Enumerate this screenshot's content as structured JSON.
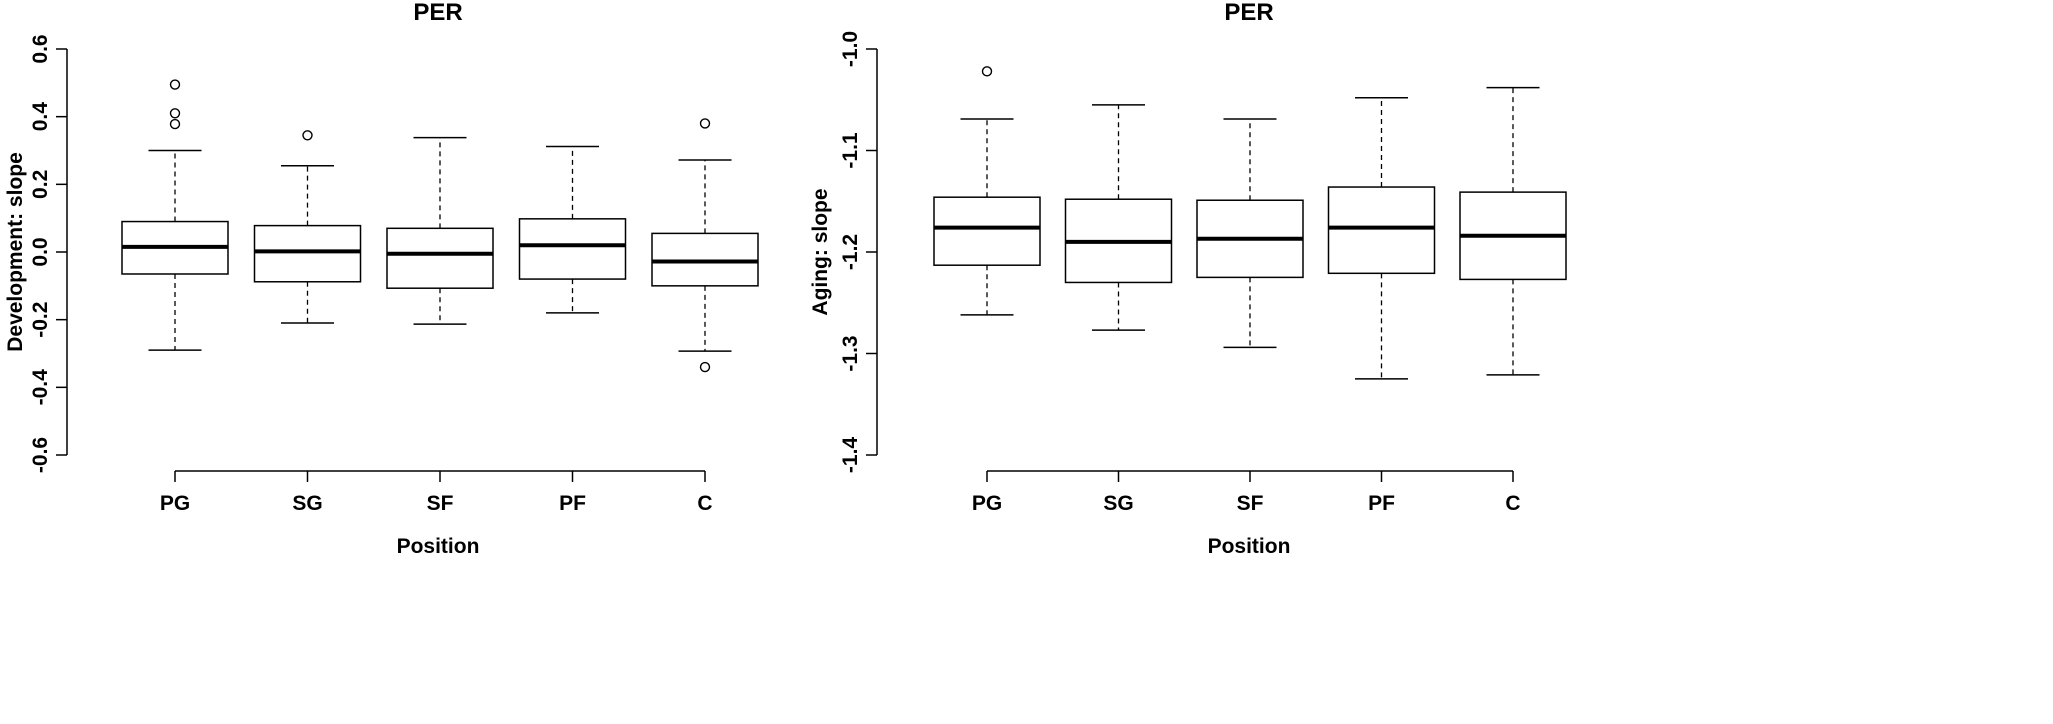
{
  "chart_data": [
    {
      "type": "boxplot",
      "title": "PER",
      "xlabel": "Position",
      "ylabel": "Development: slope",
      "ylim": [
        -0.6,
        0.6
      ],
      "yticks": [
        "-0.6",
        "-0.4",
        "-0.2",
        "0.0",
        "0.2",
        "0.4",
        "0.6"
      ],
      "ytick_values": [
        -0.6,
        -0.4,
        -0.2,
        0.0,
        0.2,
        0.4,
        0.6
      ],
      "categories": [
        "PG",
        "SG",
        "SF",
        "PF",
        "C"
      ],
      "boxes": [
        {
          "category": "PG",
          "whisker_low": -0.29,
          "q1": -0.065,
          "median": 0.015,
          "q3": 0.09,
          "whisker_high": 0.3,
          "outliers": [
            0.495,
            0.41,
            0.378
          ]
        },
        {
          "category": "SG",
          "whisker_low": -0.21,
          "q1": -0.088,
          "median": 0.002,
          "q3": 0.078,
          "whisker_high": 0.255,
          "outliers": [
            0.345
          ]
        },
        {
          "category": "SF",
          "whisker_low": -0.213,
          "q1": -0.107,
          "median": -0.005,
          "q3": 0.07,
          "whisker_high": 0.338,
          "outliers": []
        },
        {
          "category": "PF",
          "whisker_low": -0.18,
          "q1": -0.08,
          "median": 0.02,
          "q3": 0.098,
          "whisker_high": 0.312,
          "outliers": []
        },
        {
          "category": "C",
          "whisker_low": -0.293,
          "q1": -0.1,
          "median": -0.028,
          "q3": 0.055,
          "whisker_high": 0.272,
          "outliers": [
            0.38,
            -0.34
          ]
        }
      ]
    },
    {
      "type": "boxplot",
      "title": "PER",
      "xlabel": "Position",
      "ylabel": "Aging: slope",
      "ylim": [
        -1.4,
        -1.0
      ],
      "yticks": [
        "-1.4",
        "-1.3",
        "-1.2",
        "-1.1",
        "-1.0"
      ],
      "ytick_values": [
        -1.4,
        -1.3,
        -1.2,
        -1.1,
        -1.0
      ],
      "categories": [
        "PG",
        "SG",
        "SF",
        "PF",
        "C"
      ],
      "boxes": [
        {
          "category": "PG",
          "whisker_low": -1.262,
          "q1": -1.213,
          "median": -1.176,
          "q3": -1.146,
          "whisker_high": -1.069,
          "outliers": [
            -1.022
          ]
        },
        {
          "category": "SG",
          "whisker_low": -1.277,
          "q1": -1.23,
          "median": -1.19,
          "q3": -1.148,
          "whisker_high": -1.055,
          "outliers": []
        },
        {
          "category": "SF",
          "whisker_low": -1.294,
          "q1": -1.225,
          "median": -1.187,
          "q3": -1.149,
          "whisker_high": -1.069,
          "outliers": []
        },
        {
          "category": "PF",
          "whisker_low": -1.325,
          "q1": -1.221,
          "median": -1.176,
          "q3": -1.136,
          "whisker_high": -1.048,
          "outliers": []
        },
        {
          "category": "C",
          "whisker_low": -1.321,
          "q1": -1.227,
          "median": -1.184,
          "q3": -1.141,
          "whisker_high": -1.038,
          "outliers": []
        }
      ]
    }
  ]
}
